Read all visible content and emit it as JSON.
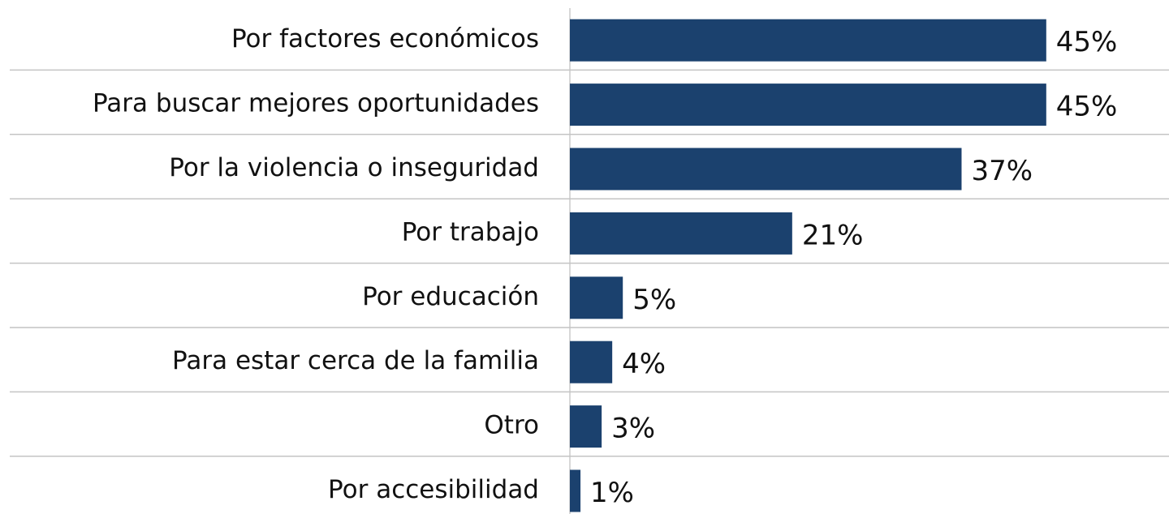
{
  "chart_data": {
    "type": "bar",
    "orientation": "horizontal",
    "categories": [
      "Por factores económicos",
      "Para buscar mejores oportunidades",
      "Por la violencia o inseguridad",
      "Por trabajo",
      "Por educación",
      "Para estar cerca de la familia",
      "Otro",
      "Por accesibilidad"
    ],
    "values": [
      45,
      45,
      37,
      21,
      5,
      4,
      3,
      1
    ],
    "value_labels": [
      "45%",
      "45%",
      "37%",
      "21%",
      "5%",
      "4%",
      "3%",
      "1%"
    ],
    "color": "#1b416e"
  }
}
